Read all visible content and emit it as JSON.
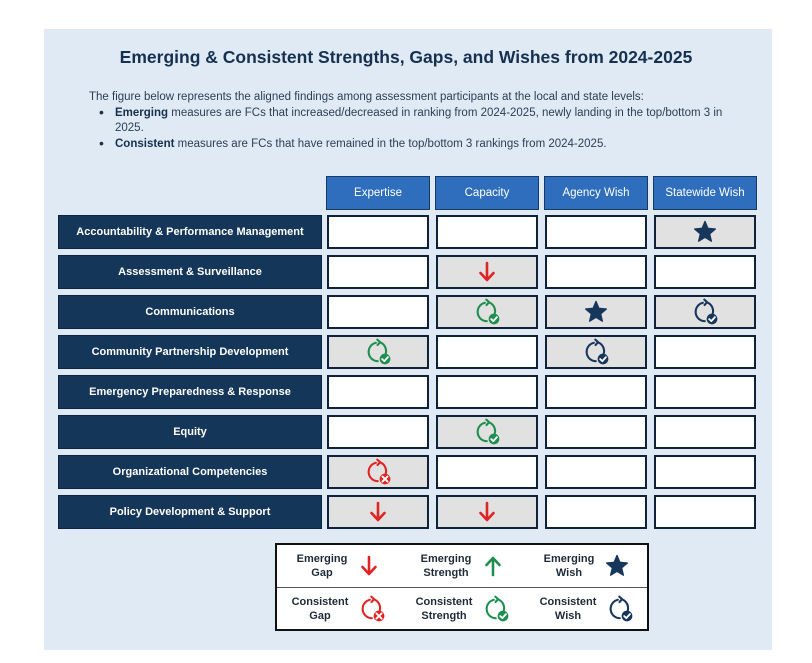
{
  "title": "Emerging & Consistent Strengths, Gaps, and Wishes from 2024-2025",
  "intro": {
    "text": "The figure below represents the aligned findings among assessment participants at the local and state levels:",
    "bullets": [
      {
        "bold": "Emerging",
        "rest": " measures are FCs that increased/decreased in ranking from 2024-2025, newly landing in the top/bottom 3 in 2025."
      },
      {
        "bold": "Consistent",
        "rest": " measures are FCs that have remained in the top/bottom 3 rankings from 2024-2025."
      }
    ]
  },
  "columns": [
    "Expertise",
    "Capacity",
    "Agency Wish",
    "Statewide Wish"
  ],
  "rows": [
    {
      "label": "Accountability & Performance Management",
      "cells": [
        "",
        "",
        "",
        "emerging-wish"
      ]
    },
    {
      "label": "Assessment & Surveillance",
      "cells": [
        "",
        "emerging-gap",
        "",
        ""
      ]
    },
    {
      "label": "Communications",
      "cells": [
        "",
        "consistent-strength",
        "emerging-wish",
        "consistent-wish"
      ]
    },
    {
      "label": "Community Partnership Development",
      "cells": [
        "consistent-strength",
        "",
        "consistent-wish",
        ""
      ]
    },
    {
      "label": "Emergency Preparedness & Response",
      "cells": [
        "",
        "",
        "",
        ""
      ]
    },
    {
      "label": "Equity",
      "cells": [
        "",
        "consistent-strength",
        "",
        ""
      ]
    },
    {
      "label": "Organizational Competencies",
      "cells": [
        "consistent-gap",
        "",
        "",
        ""
      ]
    },
    {
      "label": "Policy Development & Support",
      "cells": [
        "emerging-gap",
        "emerging-gap",
        "",
        ""
      ]
    }
  ],
  "legend": [
    {
      "line1": "Emerging",
      "line2": "Gap",
      "icon": "emerging-gap"
    },
    {
      "line1": "Emerging",
      "line2": "Strength",
      "icon": "emerging-strength"
    },
    {
      "line1": "Emerging",
      "line2": "Wish",
      "icon": "emerging-wish"
    },
    {
      "line1": "Consistent",
      "line2": "Gap",
      "icon": "consistent-gap"
    },
    {
      "line1": "Consistent",
      "line2": "Strength",
      "icon": "consistent-strength"
    },
    {
      "line1": "Consistent",
      "line2": "Wish",
      "icon": "consistent-wish"
    }
  ],
  "colors": {
    "gap": "#e02424",
    "strength": "#1e8f4e",
    "wish": "#16365c"
  }
}
